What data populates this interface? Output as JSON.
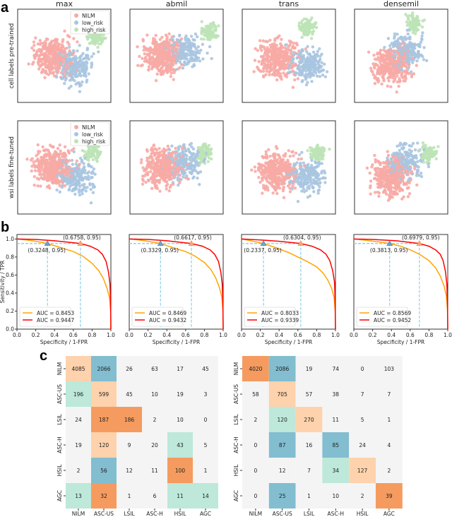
{
  "panel_letters": {
    "a": "a",
    "b": "b",
    "c": "c"
  },
  "chart_data": [
    {
      "type": "scatter",
      "panel": "a",
      "column_titles": [
        "max",
        "abmil",
        "trans",
        "densemil"
      ],
      "row_labels": [
        "cell labels pre-trained",
        "wsi labels fine-tuned"
      ],
      "legend": {
        "entries": [
          "NILM",
          "low_risk",
          "high_risk"
        ],
        "placement": "top-right"
      },
      "colors": {
        "NILM": "#f7aaa5",
        "low_risk": "#a8c5e0",
        "high_risk": "#bde3b6"
      },
      "axes": "no ticks"
    },
    {
      "type": "line",
      "panel": "b",
      "xlabel": "Specificity / 1-FPR",
      "ylabel": "Sensitivity / TPR",
      "xlim": [
        0,
        1
      ],
      "ylim": [
        0,
        1.05
      ],
      "xticks": [
        "0.0",
        "0.2",
        "0.4",
        "0.6",
        "0.8",
        "1.0"
      ],
      "yticks": [
        "0.0",
        "0.2",
        "0.4",
        "0.6",
        "0.8",
        "1.0"
      ],
      "series_colors": [
        "#ffa500",
        "#ff0000"
      ],
      "legend_placement": "lower-left",
      "panels": [
        {
          "legend": [
            "AUC = 0.8453",
            "AUC = 0.9447"
          ],
          "annotations": [
            "(0.3248, 0.95)",
            "(0.6758, 0.95)"
          ],
          "points": [
            [
              0.3248,
              0.95
            ],
            [
              0.6758,
              0.95
            ]
          ],
          "series": [
            {
              "x": [
                0,
                0.1,
                0.2,
                0.3248,
                0.45,
                0.6,
                0.7,
                0.8,
                0.87,
                0.92,
                0.96,
                0.985,
                0.997,
                1
              ],
              "y": [
                1,
                0.99,
                0.975,
                0.95,
                0.91,
                0.86,
                0.81,
                0.73,
                0.65,
                0.56,
                0.45,
                0.35,
                0.2,
                0
              ]
            },
            {
              "x": [
                0,
                0.2,
                0.4,
                0.6758,
                0.78,
                0.86,
                0.91,
                0.95,
                0.975,
                0.99,
                0.997,
                1
              ],
              "y": [
                1,
                0.995,
                0.98,
                0.95,
                0.92,
                0.88,
                0.83,
                0.75,
                0.63,
                0.5,
                0.3,
                0
              ]
            }
          ]
        },
        {
          "legend": [
            "AUC = 0.8469",
            "AUC = 0.9432"
          ],
          "annotations": [
            "(0.3329, 0.95)",
            "(0.6617, 0.95)"
          ],
          "points": [
            [
              0.3329,
              0.95
            ],
            [
              0.6617,
              0.95
            ]
          ],
          "series": [
            {
              "x": [
                0,
                0.1,
                0.2,
                0.3329,
                0.45,
                0.6,
                0.7,
                0.8,
                0.87,
                0.92,
                0.96,
                0.985,
                0.997,
                1
              ],
              "y": [
                1,
                0.99,
                0.975,
                0.95,
                0.91,
                0.86,
                0.81,
                0.74,
                0.66,
                0.57,
                0.46,
                0.36,
                0.22,
                0
              ]
            },
            {
              "x": [
                0,
                0.2,
                0.4,
                0.6617,
                0.78,
                0.86,
                0.91,
                0.95,
                0.975,
                0.99,
                0.997,
                1
              ],
              "y": [
                1,
                0.995,
                0.98,
                0.95,
                0.92,
                0.88,
                0.83,
                0.75,
                0.63,
                0.5,
                0.3,
                0
              ]
            }
          ]
        },
        {
          "legend": [
            "AUC = 0.8033",
            "AUC = 0.9339"
          ],
          "annotations": [
            "(0.2337, 0.95)",
            "(0.6304, 0.95)"
          ],
          "points": [
            [
              0.2337,
              0.95
            ],
            [
              0.6304,
              0.95
            ]
          ],
          "series": [
            {
              "x": [
                0,
                0.1,
                0.2337,
                0.35,
                0.5,
                0.6,
                0.7,
                0.8,
                0.87,
                0.92,
                0.96,
                0.985,
                0.997,
                1
              ],
              "y": [
                1,
                0.98,
                0.95,
                0.91,
                0.85,
                0.8,
                0.75,
                0.69,
                0.62,
                0.54,
                0.45,
                0.35,
                0.2,
                0
              ]
            },
            {
              "x": [
                0,
                0.2,
                0.4,
                0.6304,
                0.75,
                0.84,
                0.9,
                0.94,
                0.97,
                0.99,
                0.997,
                1
              ],
              "y": [
                1,
                0.99,
                0.975,
                0.95,
                0.92,
                0.88,
                0.83,
                0.76,
                0.65,
                0.52,
                0.3,
                0
              ]
            }
          ]
        },
        {
          "legend": [
            "AUC = 0.8569",
            "AUC = 0.9452"
          ],
          "annotations": [
            "(0.3813, 0.95)",
            "(0.6979, 0.95)"
          ],
          "points": [
            [
              0.3813,
              0.95
            ],
            [
              0.6979,
              0.95
            ]
          ],
          "series": [
            {
              "x": [
                0,
                0.1,
                0.25,
                0.3813,
                0.5,
                0.6,
                0.7,
                0.8,
                0.87,
                0.92,
                0.96,
                0.985,
                0.997,
                1
              ],
              "y": [
                1,
                0.99,
                0.97,
                0.95,
                0.92,
                0.88,
                0.83,
                0.76,
                0.68,
                0.59,
                0.48,
                0.37,
                0.22,
                0
              ]
            },
            {
              "x": [
                0,
                0.2,
                0.45,
                0.6979,
                0.8,
                0.87,
                0.92,
                0.95,
                0.975,
                0.99,
                0.997,
                1
              ],
              "y": [
                1,
                0.995,
                0.98,
                0.95,
                0.92,
                0.88,
                0.83,
                0.76,
                0.64,
                0.5,
                0.3,
                0
              ]
            }
          ]
        }
      ]
    },
    {
      "type": "heatmap",
      "panel": "c",
      "labels": [
        "NILM",
        "ASC-US",
        "LSIL",
        "ASC-H",
        "HSIL",
        "AGC"
      ],
      "palette": {
        "grey": "#f4f4f4",
        "peach": "#fdd2ac",
        "orange": "#f59b5f",
        "blue": "#82bdd0",
        "mint": "#bde8da"
      },
      "matrices": [
        {
          "values": [
            [
              4085,
              2066,
              26,
              63,
              17,
              45
            ],
            [
              196,
              599,
              45,
              10,
              19,
              3
            ],
            [
              24,
              187,
              186,
              2,
              10,
              0
            ],
            [
              19,
              120,
              9,
              20,
              43,
              5
            ],
            [
              2,
              56,
              12,
              11,
              100,
              1
            ],
            [
              13,
              32,
              1,
              6,
              11,
              14
            ]
          ],
          "cell_colors": [
            [
              "peach",
              "blue",
              "grey",
              "grey",
              "grey",
              "grey"
            ],
            [
              "mint",
              "peach",
              "grey",
              "grey",
              "grey",
              "grey"
            ],
            [
              "grey",
              "orange",
              "orange",
              "grey",
              "grey",
              "grey"
            ],
            [
              "grey",
              "peach",
              "grey",
              "grey",
              "mint",
              "grey"
            ],
            [
              "grey",
              "blue",
              "grey",
              "grey",
              "orange",
              "grey"
            ],
            [
              "mint",
              "orange",
              "grey",
              "grey",
              "mint",
              "mint"
            ]
          ]
        },
        {
          "values": [
            [
              4020,
              2086,
              19,
              74,
              0,
              103
            ],
            [
              58,
              705,
              57,
              38,
              7,
              7
            ],
            [
              2,
              120,
              270,
              11,
              5,
              1
            ],
            [
              0,
              87,
              16,
              85,
              24,
              4
            ],
            [
              0,
              12,
              7,
              34,
              127,
              2
            ],
            [
              0,
              25,
              1,
              10,
              2,
              39
            ]
          ],
          "cell_colors": [
            [
              "orange",
              "blue",
              "grey",
              "grey",
              "grey",
              "grey"
            ],
            [
              "grey",
              "peach",
              "grey",
              "grey",
              "grey",
              "grey"
            ],
            [
              "grey",
              "mint",
              "peach",
              "grey",
              "grey",
              "grey"
            ],
            [
              "grey",
              "blue",
              "grey",
              "blue",
              "grey",
              "grey"
            ],
            [
              "grey",
              "grey",
              "grey",
              "mint",
              "peach",
              "grey"
            ],
            [
              "grey",
              "blue",
              "grey",
              "grey",
              "grey",
              "orange"
            ]
          ]
        }
      ]
    }
  ]
}
